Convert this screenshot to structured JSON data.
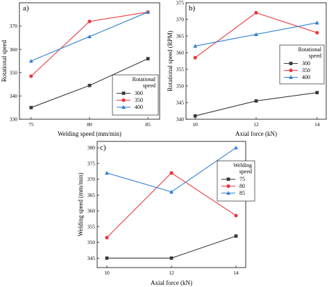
{
  "colors": {
    "black": "#3a3a3a",
    "red": "#e8393d",
    "blue": "#2f7fd1"
  },
  "chart_data": [
    {
      "type": "line",
      "panel_label": "a)",
      "xlabel": "Welding speed (mm/min)",
      "ylabel": "Rotational speed",
      "x": [
        75,
        80,
        85
      ],
      "xlim": [
        74,
        86
      ],
      "ylim": [
        330,
        380
      ],
      "yticks": [
        330,
        340,
        350,
        360,
        370
      ],
      "legend_title": "Rotational speed",
      "legend_title_lines": [
        "Rotational",
        "speed"
      ],
      "legend_position": "bottom-right",
      "series": [
        {
          "name": "300",
          "color": "#3a3a3a",
          "marker": "square",
          "values": [
            335,
            344.5,
            356
          ]
        },
        {
          "name": "350",
          "color": "#e8393d",
          "marker": "circle",
          "values": [
            348.5,
            372,
            376
          ]
        },
        {
          "name": "400",
          "color": "#2f7fd1",
          "marker": "triangle",
          "values": [
            355,
            365.5,
            376
          ]
        }
      ]
    },
    {
      "type": "line",
      "panel_label": "b)",
      "xlabel": "Axial force (kN)",
      "ylabel": "Rotational speed (RPM)",
      "x": [
        10,
        12,
        14
      ],
      "xlim": [
        9.7,
        14.3
      ],
      "ylim": [
        340,
        375
      ],
      "yticks": [
        340,
        345,
        350,
        355,
        360,
        365,
        370,
        375
      ],
      "legend_title": "Rotational speed",
      "legend_title_lines": [
        "Rotational",
        "speed"
      ],
      "legend_position": "right",
      "series": [
        {
          "name": "300",
          "color": "#3a3a3a",
          "marker": "square",
          "values": [
            341,
            345.5,
            348
          ]
        },
        {
          "name": "350",
          "color": "#e8393d",
          "marker": "circle",
          "values": [
            358.5,
            372,
            366
          ]
        },
        {
          "name": "400",
          "color": "#2f7fd1",
          "marker": "triangle",
          "values": [
            362,
            365.5,
            369
          ]
        }
      ]
    },
    {
      "type": "line",
      "panel_label": "c)",
      "xlabel": "Axial force (kN)",
      "ylabel": "Welding speed (mm/min)",
      "x": [
        10,
        12,
        14
      ],
      "xlim": [
        9.7,
        14.3
      ],
      "ylim": [
        342,
        382
      ],
      "yticks": [
        345,
        350,
        355,
        360,
        365,
        370,
        375,
        380
      ],
      "legend_title": "Welding speed",
      "legend_title_lines": [
        "Welding",
        "speed"
      ],
      "legend_position": "top-right",
      "series": [
        {
          "name": "75",
          "color": "#3a3a3a",
          "marker": "square",
          "values": [
            345,
            345,
            352
          ]
        },
        {
          "name": "80",
          "color": "#e8393d",
          "marker": "circle",
          "values": [
            351.5,
            372,
            358.5
          ]
        },
        {
          "name": "85",
          "color": "#2f7fd1",
          "marker": "triangle",
          "values": [
            372,
            366,
            380
          ]
        }
      ]
    }
  ]
}
